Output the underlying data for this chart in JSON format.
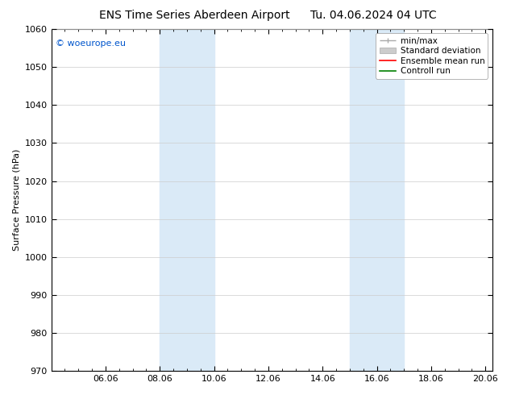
{
  "title": "ENS Time Series Aberdeen Airport",
  "title2": "Tu. 04.06.2024 04 UTC",
  "ylabel": "Surface Pressure (hPa)",
  "ylim": [
    970,
    1060
  ],
  "yticks": [
    970,
    980,
    990,
    1000,
    1010,
    1020,
    1030,
    1040,
    1050,
    1060
  ],
  "xlim": [
    4.0,
    20.25
  ],
  "xtick_positions": [
    6.0,
    8.0,
    10.0,
    12.0,
    14.0,
    16.0,
    18.0,
    20.0
  ],
  "xtick_labels": [
    "06.06",
    "08.06",
    "10.06",
    "12.06",
    "14.06",
    "16.06",
    "18.06",
    "20.06"
  ],
  "shade_regions": [
    {
      "xmin": 8.0,
      "xmax": 9.0
    },
    {
      "xmin": 9.0,
      "xmax": 10.0
    },
    {
      "xmin": 15.0,
      "xmax": 16.0
    },
    {
      "xmin": 16.0,
      "xmax": 17.0
    }
  ],
  "shade_color": "#daeaf7",
  "watermark_text": "© woeurope.eu",
  "watermark_color": "#0055cc",
  "legend_entries": [
    {
      "label": "min/max"
    },
    {
      "label": "Standard deviation"
    },
    {
      "label": "Ensemble mean run"
    },
    {
      "label": "Controll run"
    }
  ],
  "background_color": "#ffffff",
  "title_fontsize": 10,
  "axis_label_fontsize": 8,
  "tick_fontsize": 8,
  "legend_fontsize": 7.5
}
